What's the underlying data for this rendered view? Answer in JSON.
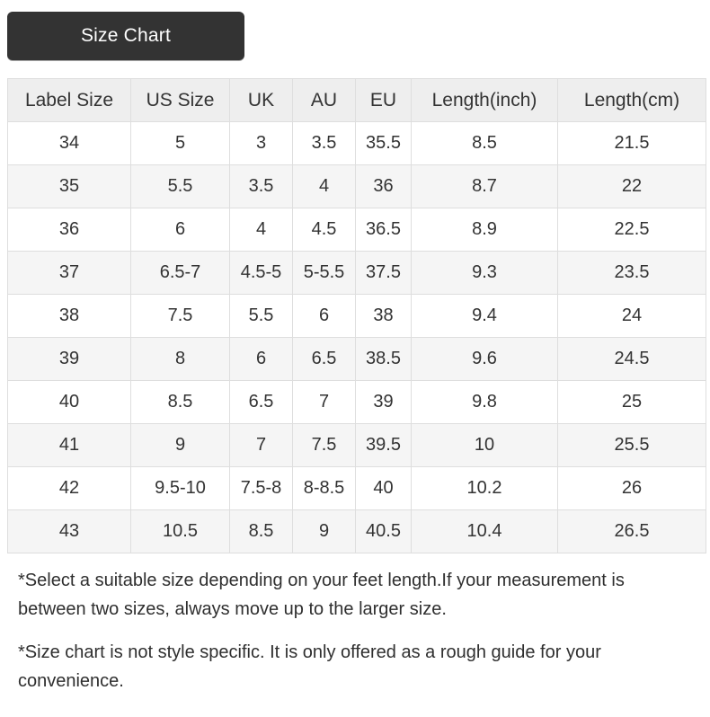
{
  "title": "Size Chart",
  "table": {
    "columns": [
      "Label Size",
      "US Size",
      "UK",
      "AU",
      "EU",
      "Length(inch)",
      "Length(cm)"
    ],
    "rows": [
      [
        "34",
        "5",
        "3",
        "3.5",
        "35.5",
        "8.5",
        "21.5"
      ],
      [
        "35",
        "5.5",
        "3.5",
        "4",
        "36",
        "8.7",
        "22"
      ],
      [
        "36",
        "6",
        "4",
        "4.5",
        "36.5",
        "8.9",
        "22.5"
      ],
      [
        "37",
        "6.5-7",
        "4.5-5",
        "5-5.5",
        "37.5",
        "9.3",
        "23.5"
      ],
      [
        "38",
        "7.5",
        "5.5",
        "6",
        "38",
        "9.4",
        "24"
      ],
      [
        "39",
        "8",
        "6",
        "6.5",
        "38.5",
        "9.6",
        "24.5"
      ],
      [
        "40",
        "8.5",
        "6.5",
        "7",
        "39",
        "9.8",
        "25"
      ],
      [
        "41",
        "9",
        "7",
        "7.5",
        "39.5",
        "10",
        "25.5"
      ],
      [
        "42",
        "9.5-10",
        "7.5-8",
        "8-8.5",
        "40",
        "10.2",
        "26"
      ],
      [
        "43",
        "10.5",
        "8.5",
        "9",
        "40.5",
        "10.4",
        "26.5"
      ]
    ]
  },
  "notes": [
    "*Select a suitable size depending on your feet length.If your measurement is between two sizes, always move up to the larger size.",
    "*Size chart is not style specific. It is only offered as a rough guide for your convenience."
  ],
  "colors": {
    "title_bar_bg": "#333333",
    "title_text": "#ffffff",
    "header_row_bg": "#eeeeee",
    "stripe_row_bg": "#f5f5f5",
    "table_border": "#dedede",
    "text": "#333333"
  }
}
